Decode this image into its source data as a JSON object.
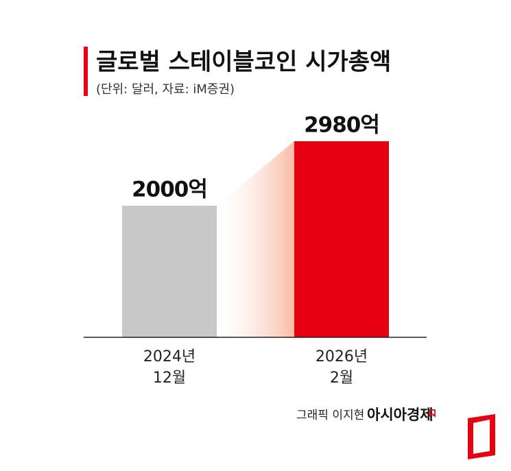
{
  "chart_data": {
    "type": "bar",
    "title": "글로벌 스테이블코인 시가총액",
    "subtitle": "(단위: 달러, 자료: iM증권)",
    "categories": [
      "2024년 12월",
      "2026년 2월"
    ],
    "values": [
      2000,
      2980
    ],
    "value_labels": [
      "2000억",
      "2980억"
    ],
    "colors": [
      "#c8c8c8",
      "#e60012"
    ],
    "credit": "그래픽 이지현",
    "brand": "아시아경제"
  }
}
